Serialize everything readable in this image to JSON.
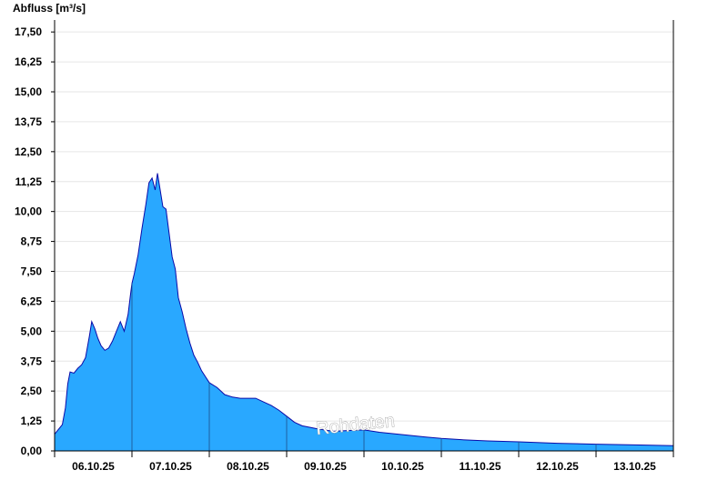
{
  "chart_data": {
    "type": "area",
    "title": "",
    "xlabel": "",
    "ylabel": "Abfluss [m³/s]",
    "ylim": [
      0,
      18.0
    ],
    "y_ticks": [
      "0,00",
      "1,25",
      "2,50",
      "3,75",
      "5,00",
      "6,25",
      "7,50",
      "8,75",
      "10,00",
      "11,25",
      "12,50",
      "13,75",
      "15,00",
      "16,25",
      "17,50"
    ],
    "x_unit": "days",
    "xlim": [
      0,
      8
    ],
    "x_tick_labels": [
      "06.10.25",
      "07.10.25",
      "08.10.25",
      "09.10.25",
      "10.10.25",
      "11.10.25",
      "12.10.25",
      "13.10.25"
    ],
    "grid": true,
    "fill_color": "#29a8ff",
    "line_color": "#0a0aa8",
    "watermark": "Rohdaten",
    "series": [
      {
        "x": [
          0.0,
          0.05,
          0.1,
          0.14,
          0.17,
          0.2,
          0.25,
          0.3,
          0.35,
          0.4,
          0.45,
          0.48,
          0.52,
          0.56,
          0.6,
          0.65,
          0.7,
          0.75,
          0.8,
          0.85,
          0.9,
          0.95,
          0.98,
          1.0,
          1.03,
          1.08,
          1.13,
          1.18,
          1.22,
          1.26,
          1.3,
          1.33,
          1.36,
          1.4,
          1.44,
          1.48,
          1.52,
          1.56,
          1.6,
          1.65,
          1.7,
          1.75,
          1.8,
          1.85,
          1.9,
          1.95,
          2.0,
          2.1,
          2.2,
          2.3,
          2.4,
          2.5,
          2.6,
          2.7,
          2.8,
          2.9,
          3.0,
          3.1,
          3.2,
          3.4,
          3.6,
          3.8,
          4.0,
          4.2,
          4.5,
          4.8,
          5.0,
          5.3,
          5.6,
          6.0,
          6.5,
          7.0,
          7.5,
          8.0
        ],
        "y": [
          0.7,
          0.9,
          1.1,
          1.8,
          2.8,
          3.3,
          3.25,
          3.45,
          3.6,
          3.9,
          4.8,
          5.4,
          5.1,
          4.7,
          4.4,
          4.2,
          4.3,
          4.6,
          5.0,
          5.4,
          5.0,
          5.7,
          6.5,
          7.0,
          7.4,
          8.2,
          9.3,
          10.3,
          11.2,
          11.4,
          10.9,
          11.6,
          11.0,
          10.2,
          10.1,
          9.1,
          8.1,
          7.6,
          6.4,
          5.8,
          5.1,
          4.5,
          4.0,
          3.7,
          3.35,
          3.1,
          2.85,
          2.65,
          2.35,
          2.25,
          2.2,
          2.2,
          2.2,
          2.05,
          1.9,
          1.7,
          1.45,
          1.2,
          1.05,
          0.92,
          0.82,
          0.85,
          0.88,
          0.78,
          0.68,
          0.58,
          0.52,
          0.46,
          0.42,
          0.38,
          0.32,
          0.28,
          0.25,
          0.22
        ]
      }
    ]
  }
}
